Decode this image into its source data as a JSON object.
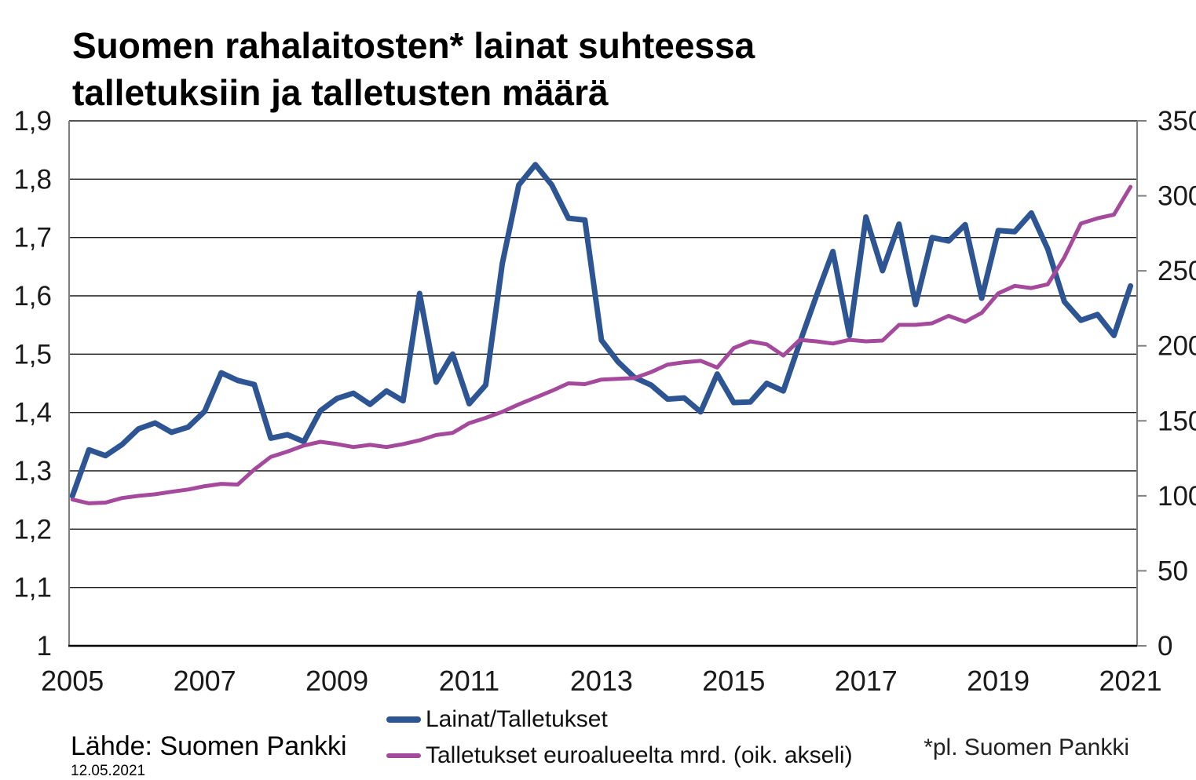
{
  "title": {
    "text": "Suomen rahalaitosten* lainat suhteessa talletuksiin ja talletusten määrä",
    "lines": [
      "Suomen rahalaitosten* lainat suhteessa",
      "talletuksiin ja talletusten määrä"
    ]
  },
  "source": {
    "label": "Lähde: Suomen Pankki",
    "date": "12.05.2021"
  },
  "footnote": "*pl. Suomen Pankki",
  "colors": {
    "loans_line": "#2E5593",
    "deposits_line": "#A5499C",
    "grid": "#1a1a1a",
    "spine": "#7f7f7f",
    "axis_text": "#1a1a1a"
  },
  "chart_data": {
    "type": "line",
    "title": "Suomen rahalaitosten* lainat suhteessa talletuksiin ja talletusten määrä",
    "grid": "horizontal",
    "legend_position": "bottom-center",
    "x_axis": {
      "min": 2004.95,
      "max": 2021.1,
      "ticks": [
        {
          "label": "2005",
          "value": 2005
        },
        {
          "label": "2007",
          "value": 2007
        },
        {
          "label": "2009",
          "value": 2009
        },
        {
          "label": "2011",
          "value": 2011
        },
        {
          "label": "2013",
          "value": 2013
        },
        {
          "label": "2015",
          "value": 2015
        },
        {
          "label": "2017",
          "value": 2017
        },
        {
          "label": "2019",
          "value": 2019
        },
        {
          "label": "2021",
          "value": 2021
        }
      ]
    },
    "y_left": {
      "min": 1.0,
      "max": 1.9,
      "ticks": [
        {
          "label": "1",
          "value": 1.0
        },
        {
          "label": "1,1",
          "value": 1.1
        },
        {
          "label": "1,2",
          "value": 1.2
        },
        {
          "label": "1,3",
          "value": 1.3
        },
        {
          "label": "1,4",
          "value": 1.4
        },
        {
          "label": "1,5",
          "value": 1.5
        },
        {
          "label": "1,6",
          "value": 1.6
        },
        {
          "label": "1,7",
          "value": 1.7
        },
        {
          "label": "1,8",
          "value": 1.8
        },
        {
          "label": "1,9",
          "value": 1.9
        }
      ]
    },
    "y_right": {
      "min": 0,
      "max": 350,
      "ticks": [
        {
          "label": "0",
          "value": 0
        },
        {
          "label": "50",
          "value": 50
        },
        {
          "label": "100",
          "value": 100
        },
        {
          "label": "150",
          "value": 150
        },
        {
          "label": "200",
          "value": 200
        },
        {
          "label": "250",
          "value": 250
        },
        {
          "label": "300",
          "value": 300
        },
        {
          "label": "350",
          "value": 350
        }
      ]
    },
    "x_start": 2005.0,
    "x_step_years": 0.25,
    "frequency": "quarterly (2005Q1–2021Q1, estimated from plot)",
    "series": [
      {
        "name": "Lainat/Talletukset",
        "axis": "left",
        "color": "#2E5593",
        "stroke_width": 7,
        "values": [
          1.257,
          1.336,
          1.326,
          1.345,
          1.372,
          1.382,
          1.366,
          1.375,
          1.402,
          1.468,
          1.455,
          1.448,
          1.356,
          1.362,
          1.35,
          1.403,
          1.424,
          1.433,
          1.414,
          1.437,
          1.42,
          1.604,
          1.452,
          1.5,
          1.415,
          1.447,
          1.655,
          1.79,
          1.825,
          1.79,
          1.733,
          1.73,
          1.524,
          1.487,
          1.46,
          1.447,
          1.423,
          1.425,
          1.401,
          1.466,
          1.417,
          1.418,
          1.45,
          1.437,
          1.52,
          1.6,
          1.676,
          1.532,
          1.735,
          1.643,
          1.723,
          1.585,
          1.7,
          1.694,
          1.722,
          1.596,
          1.712,
          1.71,
          1.742,
          1.68,
          1.59,
          1.558,
          1.568,
          1.532,
          1.617
        ]
      },
      {
        "name": "Talletukset euroalueelta mrd. (oik. akseli)",
        "axis": "right",
        "color": "#A5499C",
        "stroke_width": 5,
        "values": [
          97.5,
          95,
          95.5,
          98.5,
          100,
          101,
          102.7,
          104.2,
          106.4,
          108,
          107.5,
          117.5,
          126,
          129.5,
          133.5,
          136,
          134.5,
          132.5,
          134,
          132.5,
          134.5,
          137,
          140.5,
          142,
          148.5,
          152,
          156,
          161,
          165.5,
          170,
          175,
          174.5,
          177.5,
          178,
          178.5,
          182.5,
          187.5,
          189,
          190,
          185.5,
          198.5,
          203,
          201,
          193.5,
          204,
          203,
          201.5,
          204,
          203,
          203.5,
          214,
          214,
          215,
          220,
          216,
          222,
          235,
          240,
          238.5,
          241,
          259,
          281.5,
          285,
          287.5,
          306
        ]
      }
    ]
  }
}
